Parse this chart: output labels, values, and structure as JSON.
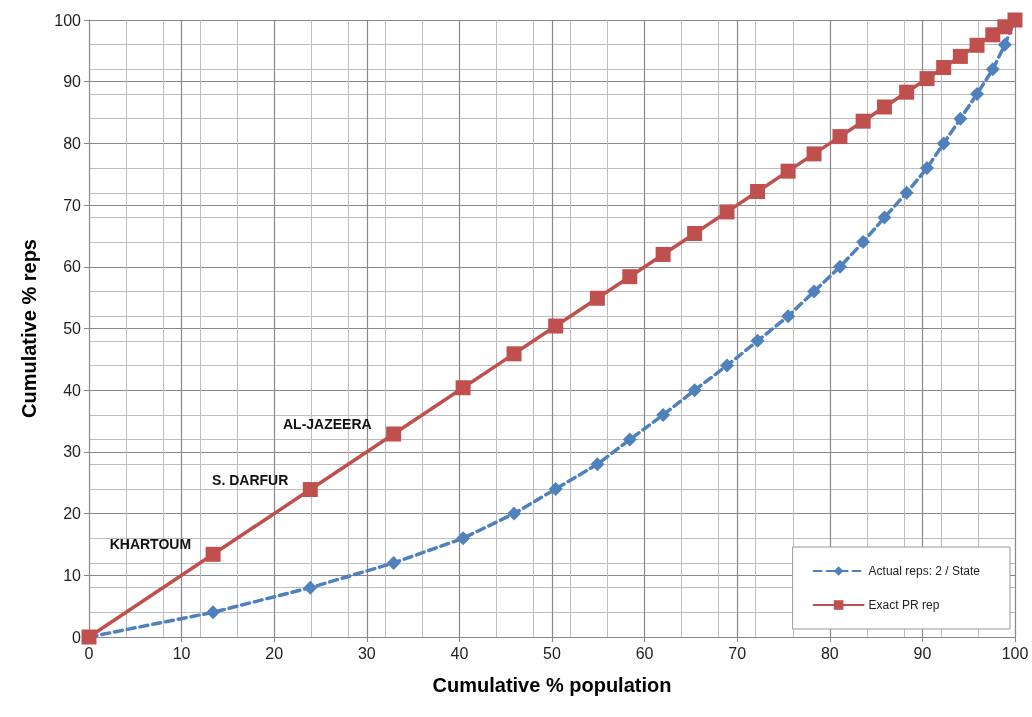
{
  "chart_data": {
    "type": "line",
    "xlabel": "Cumulative % population",
    "ylabel": "Cumulative % reps",
    "xlim": [
      0,
      100
    ],
    "xticks": [
      0,
      10,
      20,
      30,
      40,
      50,
      60,
      70,
      80,
      90,
      100
    ],
    "ylim": [
      0,
      100
    ],
    "yticks": [
      0,
      10,
      20,
      30,
      40,
      50,
      60,
      70,
      80,
      90,
      100
    ],
    "grid": true,
    "legend": "bottom right",
    "series": [
      {
        "name": "Actual reps: 2 / State",
        "color": "#4f81bd",
        "marker": "diamond",
        "line_style": "dashed",
        "x": [
          0,
          13.4,
          23.9,
          32.9,
          40.4,
          45.9,
          50.4,
          54.9,
          58.4,
          62.0,
          65.4,
          68.9,
          72.2,
          75.5,
          78.3,
          81.1,
          83.6,
          85.9,
          88.3,
          90.5,
          92.3,
          94.1,
          95.9,
          97.6,
          98.9,
          100
        ],
        "values": [
          0,
          4,
          8,
          12,
          16,
          20,
          24,
          28,
          32,
          36,
          40,
          44,
          48,
          52,
          56,
          60,
          64,
          68,
          72,
          76,
          80,
          84,
          88,
          92,
          96,
          100
        ]
      },
      {
        "name": "Exact PR rep",
        "color": "#c0504d",
        "marker": "square",
        "line_style": "solid",
        "x": [
          0,
          13.4,
          23.9,
          32.9,
          40.4,
          45.9,
          50.4,
          54.9,
          58.4,
          62.0,
          65.4,
          68.9,
          72.2,
          75.5,
          78.3,
          81.1,
          83.6,
          85.9,
          88.3,
          90.5,
          92.3,
          94.1,
          95.9,
          97.6,
          98.9,
          100
        ],
        "values": [
          0,
          13.4,
          23.9,
          32.9,
          40.4,
          45.9,
          50.4,
          54.9,
          58.4,
          62.0,
          65.4,
          68.9,
          72.2,
          75.5,
          78.3,
          81.1,
          83.6,
          85.9,
          88.3,
          90.5,
          92.3,
          94.1,
          95.9,
          97.6,
          98.9,
          100
        ]
      }
    ],
    "annotations": [
      {
        "text": "KHARTOUM",
        "x": 13.4,
        "y": 13.4
      },
      {
        "text": "S. DARFUR",
        "x": 23.9,
        "y": 23.9
      },
      {
        "text": "AL-JAZEERA",
        "x": 32.9,
        "y": 32.9
      }
    ]
  }
}
